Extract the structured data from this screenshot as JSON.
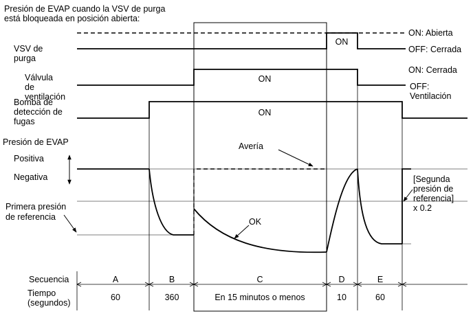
{
  "title": {
    "line1": "Presión de EVAP cuando la VSV de purga",
    "line2": "está bloqueada en posición abierta:"
  },
  "rows": {
    "vsv": {
      "line1": "VSV de",
      "line2": "purga",
      "on_label": "ON: Abierta",
      "off_label": "OFF: Cerrada",
      "pulse": "ON"
    },
    "vent": {
      "line1": "Válvula",
      "line2": "de",
      "line3": "ventilación",
      "on_label": "ON: Cerrada",
      "off_label1": "OFF:",
      "off_label2": "Ventilación",
      "pulse": "ON"
    },
    "pump": {
      "line1": "Bomba de",
      "line2": "detección de",
      "line3": "fugas",
      "pulse": "ON"
    }
  },
  "pressure": {
    "title": "Presión de EVAP",
    "positive": "Positiva",
    "negative": "Negativa",
    "first_ref1": "Primera presión",
    "first_ref2": "de referencia",
    "failure": "Avería",
    "ok": "OK",
    "second_ref1": "[Segunda",
    "second_ref2": "presión de",
    "second_ref3": "referencia]",
    "second_ref4": "x 0.2"
  },
  "sequence": {
    "label": "Secuencia",
    "time_label1": "Tiempo",
    "time_label2": "(segundos)",
    "phases": [
      {
        "name": "A",
        "time": "60"
      },
      {
        "name": "B",
        "time": "360"
      },
      {
        "name": "C",
        "time": "En 15 minutos o menos"
      },
      {
        "name": "D",
        "time": "10"
      },
      {
        "name": "E",
        "time": "60"
      }
    ]
  }
}
